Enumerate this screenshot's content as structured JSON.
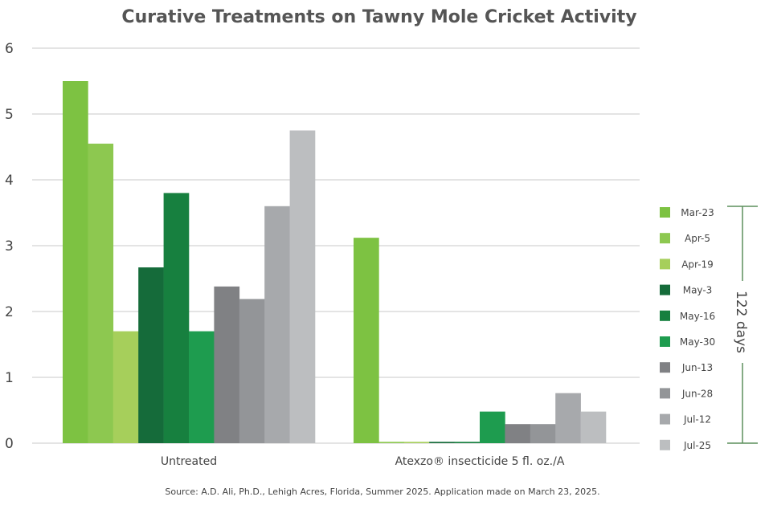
{
  "chart_data": {
    "type": "bar",
    "title": "Curative Treatments on Tawny Mole Cricket Activity",
    "xlabel": "",
    "ylabel": "",
    "ylim": [
      0,
      6
    ],
    "yticks": [
      "0",
      "1",
      "2",
      "3",
      "4",
      "5",
      "6"
    ],
    "grid": true,
    "legend_position": "right",
    "categories": [
      "Untreated",
      "Atexzo® insecticide 5 fl. oz./A"
    ],
    "series": [
      {
        "name": "Mar-23",
        "color": "#7dc242",
        "values": [
          5.5,
          3.12
        ]
      },
      {
        "name": "Apr-5",
        "color": "#8dc850",
        "values": [
          4.55,
          0.02
        ]
      },
      {
        "name": "Apr-19",
        "color": "#a6cf5b",
        "values": [
          1.7,
          0.02
        ]
      },
      {
        "name": "May-3",
        "color": "#156b3a",
        "values": [
          2.67,
          0.02
        ]
      },
      {
        "name": "May-16",
        "color": "#17803f",
        "values": [
          3.8,
          0.02
        ]
      },
      {
        "name": "May-30",
        "color": "#1e9c4f",
        "values": [
          1.7,
          0.48
        ]
      },
      {
        "name": "Jun-13",
        "color": "#808184",
        "values": [
          2.38,
          0.29
        ]
      },
      {
        "name": "Jun-28",
        "color": "#939598",
        "values": [
          2.19,
          0.29
        ]
      },
      {
        "name": "Jul-12",
        "color": "#a7a9ac",
        "values": [
          3.6,
          0.76
        ]
      },
      {
        "name": "Jul-25",
        "color": "#bcbec0",
        "values": [
          4.75,
          0.48
        ]
      }
    ],
    "annotation": "122 days",
    "source": "Source: A.D. Ali, Ph.D., Lehigh Acres, Florida, Summer 2025. Application made on March 23, 2025."
  }
}
